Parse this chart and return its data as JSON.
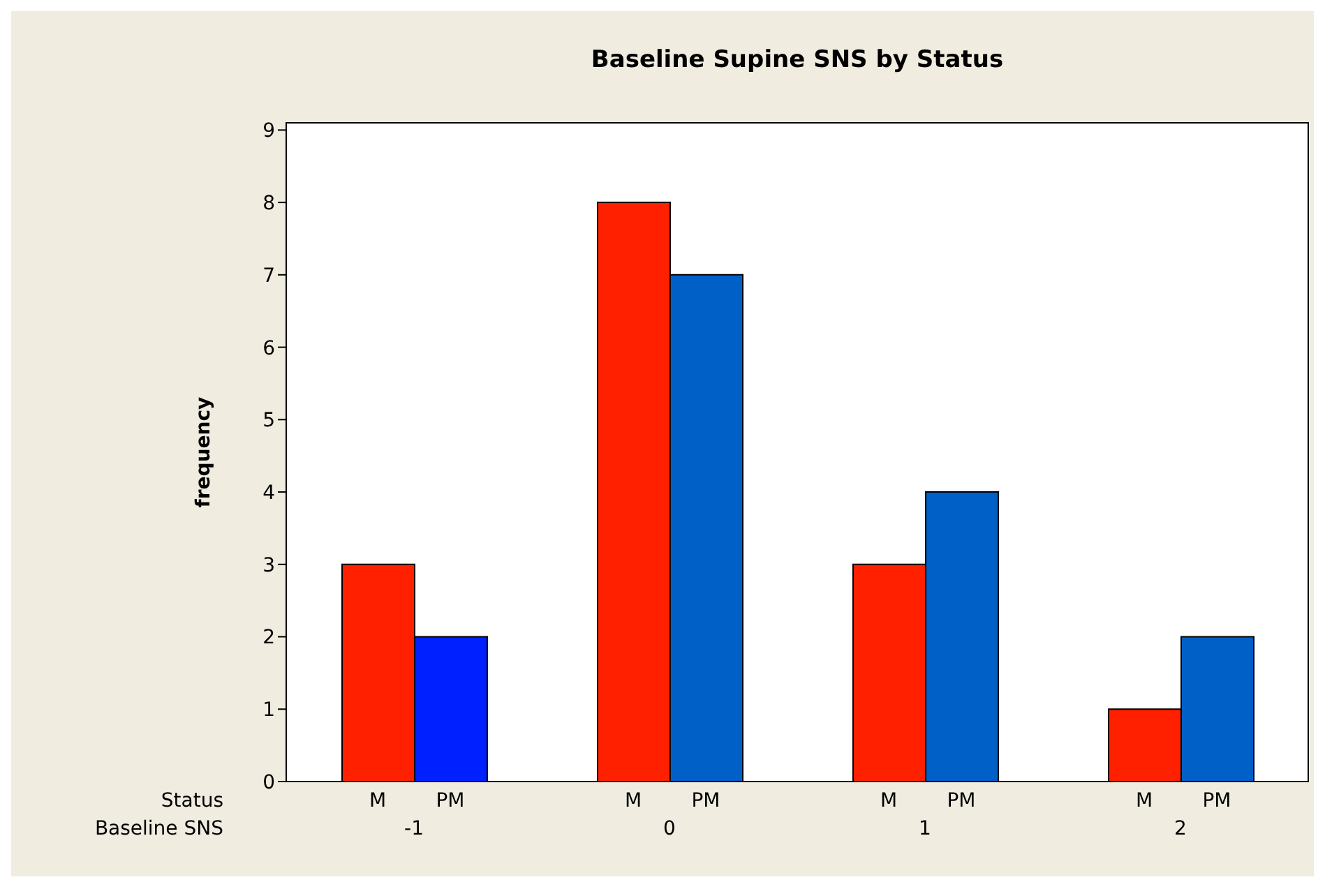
{
  "chart_data": {
    "type": "bar",
    "title": "Baseline Supine SNS by Status",
    "ylabel": "frequency",
    "xlabel": "Baseline SNS",
    "legend_title": "Status",
    "categories": [
      "-1",
      "0",
      "1",
      "2"
    ],
    "series": [
      {
        "name": "M",
        "color": "#ff2000",
        "values": [
          3,
          8,
          3,
          1
        ]
      },
      {
        "name": "PM",
        "color": "#0060c8",
        "colors": [
          "#0020ff",
          "#0060c8",
          "#0060c8",
          "#0060c8"
        ],
        "values": [
          2,
          7,
          4,
          2
        ]
      }
    ],
    "ylim": [
      0,
      9.1
    ],
    "yticks": [
      0,
      1,
      2,
      3,
      4,
      5,
      6,
      7,
      8,
      9
    ]
  }
}
